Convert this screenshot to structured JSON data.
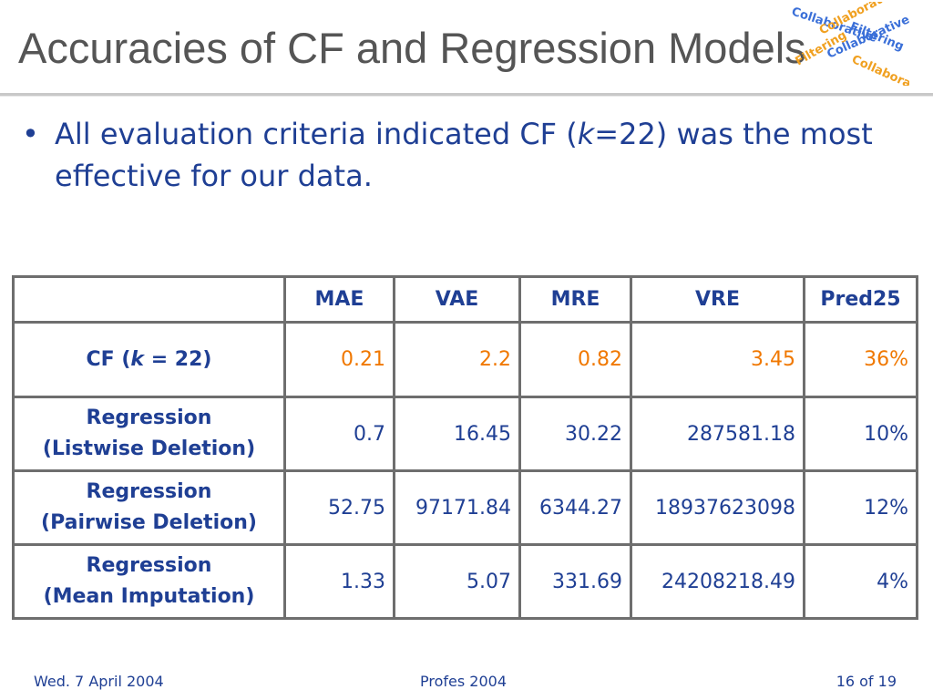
{
  "slide": {
    "title": "Accuracies of CF and Regression Models"
  },
  "bullet": {
    "text_before": "All evaluation criteria indicated CF (",
    "italic_k": "k",
    "text_after": "=22) was the most effective for our data."
  },
  "logo": {
    "lines": [
      "Collaborative",
      "Filtering"
    ],
    "colors": {
      "blue": "#3a6fd8",
      "orange": "#f0a020"
    }
  },
  "table": {
    "headers": [
      "",
      "MAE",
      "VAE",
      "MRE",
      "VRE",
      "Pred25"
    ],
    "rows": [
      {
        "label_line1": "CF (",
        "label_k": "k",
        "label_line1_after": " = 22)",
        "label_line2": "",
        "values": [
          "0.21",
          "2.2",
          "0.82",
          "3.45",
          "36%"
        ]
      },
      {
        "label_line1": "Regression",
        "label_line2": "(Listwise Deletion)",
        "values": [
          "0.7",
          "16.45",
          "30.22",
          "287581.18",
          "10%"
        ]
      },
      {
        "label_line1": "Regression",
        "label_line2": "(Pairwise Deletion)",
        "values": [
          "52.75",
          "97171.84",
          "6344.27",
          "18937623098",
          "12%"
        ]
      },
      {
        "label_line1": "Regression",
        "label_line2": "(Mean Imputation)",
        "values": [
          "1.33",
          "5.07",
          "331.69",
          "24208218.49",
          "4%"
        ]
      }
    ]
  },
  "footer": {
    "date": "Wed. 7 April 2004",
    "event": "Profes 2004",
    "page": "16 of 19"
  },
  "colors": {
    "title": "#555555",
    "text_blue": "#1f3f94",
    "highlight_orange": "#f07800",
    "table_border": "#6e6e6e"
  }
}
